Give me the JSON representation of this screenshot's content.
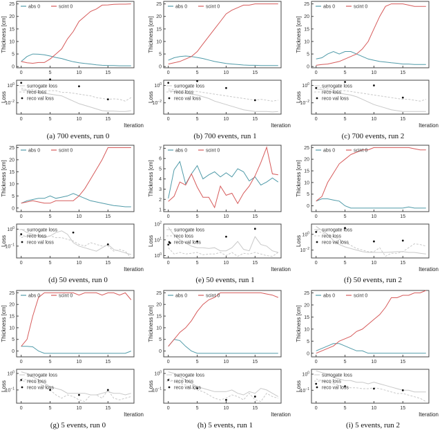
{
  "labels": {
    "thickness_axis": "Thickness [cm]",
    "loss_axis": "Loss",
    "iteration_axis": "Iteration",
    "abs": "abs 0",
    "scint": "scint 0",
    "surrogate": "surrogate loss",
    "reco": "reco loss",
    "reco_val": "reco val loss"
  },
  "colors": {
    "abs": "#4f9aa8",
    "scint": "#d65a5a",
    "surrogate": "#c8c8c8",
    "reco": "#c8c8c8",
    "val": "#111111"
  },
  "chart_data": [
    {
      "type": "line",
      "caption": "(a) 700 events, run 0",
      "x_ticks": [
        0,
        5,
        10,
        15
      ],
      "ylim": [
        -0.5,
        26
      ],
      "y_ticks": [
        0,
        5,
        10,
        15,
        20,
        25
      ],
      "abs": [
        2,
        4,
        5,
        4.9,
        4.7,
        4.2,
        3.6,
        3.2,
        2.5,
        1.9,
        1.5,
        1.2,
        1,
        0.7,
        0.5,
        0.4,
        0.4,
        0.3,
        0.3,
        0.3
      ],
      "scint": [
        2,
        1.5,
        1.3,
        1.6,
        1.6,
        3,
        5,
        7,
        11,
        14,
        18,
        20,
        22,
        23,
        24.5,
        24.6,
        24.8,
        24.9,
        24.9,
        25
      ],
      "loss_ylim_log10": [
        -3.3,
        0.6
      ],
      "loss_ticks_log10": [
        0,
        -2
      ],
      "surrogate_log10": [
        -0.5,
        -0.6,
        -0.7,
        -0.8,
        -0.9,
        -1,
        -1.1,
        -1.2,
        -1.5,
        -1.8,
        -2.1,
        -2.3,
        -2.5,
        -2.7,
        -2.9,
        -2.95,
        -2.95,
        -3,
        -3,
        -2.9
      ],
      "reco_log10": [
        -0.3,
        -0.5,
        -0.5,
        -0.6,
        -0.6,
        -0.6,
        -0.6,
        -0.8,
        -0.8,
        -0.9,
        -1,
        -1.1,
        -1.2,
        -1.4,
        -1.5,
        -1.6,
        -1.55,
        -1.6,
        -1.8,
        -1.4
      ],
      "val_log10": [
        [
          0,
          0.3
        ],
        [
          5,
          0.7
        ],
        [
          10,
          -0.1
        ],
        [
          15,
          -1.6
        ]
      ]
    },
    {
      "type": "line",
      "caption": "(b) 700 events, run 1",
      "x_ticks": [
        0,
        5,
        10,
        15
      ],
      "ylim": [
        -0.5,
        26
      ],
      "y_ticks": [
        0,
        5,
        10,
        15,
        20,
        25
      ],
      "abs": [
        2.5,
        3.5,
        4,
        4.2,
        4,
        3.6,
        3.2,
        2.6,
        2,
        1.6,
        1.2,
        1,
        0.8,
        0.6,
        0.5,
        0.5,
        0.4,
        0.4,
        0.4,
        0.4
      ],
      "scint": [
        1,
        1.5,
        2,
        3,
        4,
        6,
        9,
        12,
        15,
        18,
        21,
        22.5,
        23.5,
        24.5,
        24.5,
        25,
        25,
        25,
        25,
        25
      ],
      "loss_ylim_log10": [
        -3.3,
        0.6
      ],
      "loss_ticks_log10": [
        0,
        -2
      ],
      "surrogate_log10": [
        -0.6,
        -0.7,
        -0.8,
        -0.9,
        -1,
        -1.1,
        -1.3,
        -1.5,
        -1.8,
        -2,
        -2.2,
        -2.4,
        -2.6,
        -2.8,
        -2.9,
        -3,
        -3,
        -3,
        -3.05,
        -3
      ],
      "reco_log10": [
        -0.4,
        -0.5,
        -0.6,
        -0.6,
        -0.7,
        -0.7,
        -0.8,
        -0.9,
        -1,
        -1.1,
        -1.2,
        -1.3,
        -1.4,
        -1.5,
        -1.6,
        -1.7,
        -1.6,
        -1.7,
        -1.8,
        -1.7
      ],
      "val_log10": [
        [
          0,
          0.3
        ],
        [
          5,
          0.5
        ],
        [
          10,
          -0.3
        ],
        [
          15,
          -1.7
        ]
      ]
    },
    {
      "type": "line",
      "caption": "(c) 700 events, run 2",
      "x_ticks": [
        0,
        5,
        10,
        15
      ],
      "ylim": [
        -0.5,
        26
      ],
      "y_ticks": [
        0,
        5,
        10,
        15,
        20,
        25
      ],
      "abs": [
        3,
        3.5,
        5,
        6,
        5,
        6,
        6,
        5,
        4,
        3,
        2.5,
        2,
        1.8,
        1.5,
        1.3,
        1,
        1,
        0.8,
        0.8,
        0.8
      ],
      "scint": [
        0.5,
        0.8,
        1,
        1.5,
        2,
        3,
        4,
        5,
        7,
        10,
        15,
        20,
        24,
        25,
        25,
        25,
        24.5,
        24,
        24,
        24
      ],
      "loss_ylim_log10": [
        -3.3,
        0.6
      ],
      "loss_ticks_log10": [
        0,
        -2
      ],
      "surrogate_log10": [
        -0.4,
        -0.5,
        -0.6,
        -0.8,
        -0.9,
        -1,
        -1.1,
        -1.3,
        -1.6,
        -1.9,
        -2.2,
        -2.4,
        -2.6,
        -2.8,
        -2.9,
        -3,
        -3,
        -3,
        -3,
        -3
      ],
      "reco_log10": [
        -0.2,
        -0.3,
        -0.4,
        -0.5,
        -0.6,
        -0.6,
        -0.7,
        -0.8,
        -0.9,
        -1,
        -1.1,
        -1.2,
        -1.3,
        -1.4,
        -1.5,
        -1.6,
        -1.6,
        -1.7,
        -1.8,
        -1.6
      ],
      "val_log10": [
        [
          0,
          -0.3
        ],
        [
          5,
          0.4
        ],
        [
          10,
          0
        ],
        [
          15,
          -1.4
        ]
      ]
    },
    {
      "type": "line",
      "caption": "(d) 50 events, run 0",
      "x_ticks": [
        0,
        5,
        10,
        15
      ],
      "ylim": [
        -1.5,
        26
      ],
      "y_ticks": [
        0,
        5,
        10,
        15,
        20,
        25
      ],
      "abs": [
        2,
        3,
        3.5,
        4,
        4,
        5,
        4,
        4.5,
        5,
        6,
        5,
        4,
        3,
        2.5,
        2,
        1.5,
        1,
        0.8,
        0.5,
        0.5
      ],
      "scint": [
        2,
        2.5,
        3,
        2.5,
        2,
        2,
        3,
        3,
        3,
        3,
        5,
        8,
        12,
        16,
        20,
        25,
        25,
        25,
        25,
        25
      ],
      "loss_ylim_log10": [
        -1.7,
        0.3
      ],
      "loss_ticks_log10": [
        0,
        -1
      ],
      "surrogate_log10": [
        0,
        -0.2,
        -0.3,
        -0.4,
        -0.5,
        -0.4,
        -0.2,
        -0.1,
        -0.3,
        -0.8,
        -1,
        -1.1,
        -1.2,
        -1.3,
        -1.1,
        -0.9,
        -1.2,
        -1.3,
        -1.4,
        -1.5
      ],
      "reco_log10": [
        -0.5,
        -0.4,
        -0.4,
        -0.35,
        -0.4,
        -0.4,
        -0.5,
        -0.5,
        -0.6,
        -0.7,
        -0.9,
        -1,
        -0.8,
        -0.9,
        -1,
        -1,
        -1.3,
        -1.2,
        -1.3,
        -1.7
      ],
      "val_log10": [
        [
          0,
          -0.3
        ],
        [
          9,
          -0.2
        ],
        [
          15,
          -0.9
        ]
      ]
    },
    {
      "type": "line",
      "caption": "(e) 50 events, run 1",
      "x_ticks": [
        0,
        5,
        10,
        15
      ],
      "ylim": [
        0.8,
        7.3
      ],
      "y_ticks": [
        1,
        2,
        3,
        4,
        5,
        6,
        7
      ],
      "abs": [
        2.1,
        4.9,
        5.7,
        3.5,
        4.5,
        5.3,
        4,
        4.4,
        4.7,
        4.2,
        4.6,
        4.2,
        5,
        4.7,
        3.8,
        4.2,
        3.4,
        3.7,
        4.1,
        3.7
      ],
      "scint": [
        1.8,
        2.3,
        3.7,
        3.4,
        4.5,
        3.2,
        2.2,
        2.2,
        1.2,
        3.3,
        2.4,
        2.6,
        1.6,
        2.6,
        3.3,
        4.3,
        5.6,
        7.1,
        4.5,
        4.4
      ],
      "loss_ylim_log10": [
        -0.15,
        2
      ],
      "loss_ticks_log10": [
        2,
        1,
        0
      ],
      "surrogate_log10": [
        1.8,
        1.3,
        1,
        0.8,
        0.6,
        0.5,
        0.5,
        0.45,
        0.5,
        0.3,
        0.3,
        0.5,
        0.9,
        0.4,
        0.3,
        1.2,
        0.7,
        0.6,
        0.3,
        0.2
      ],
      "reco_log10": [
        0.5,
        0.1,
        0.2,
        0.1,
        0.15,
        0.2,
        0.05,
        0.1,
        0.1,
        0.2,
        0,
        0.2,
        -0.05,
        0.15,
        0.1,
        0.2,
        0.1,
        0,
        -0.05,
        0.2
      ],
      "val_log10": [
        [
          0,
          0.7
        ],
        [
          0.3,
          0.8
        ],
        [
          5,
          0.9
        ],
        [
          10,
          1.2
        ],
        [
          15,
          1.7
        ]
      ]
    },
    {
      "type": "line",
      "caption": "(f) 50 events, run 2",
      "x_ticks": [
        0,
        5,
        10,
        15
      ],
      "ylim": [
        -2.5,
        26
      ],
      "y_ticks": [
        0,
        5,
        10,
        15,
        20,
        25
      ],
      "abs": [
        2,
        3,
        3,
        2.5,
        2,
        0,
        -1,
        -1,
        -1,
        -1,
        -1,
        -1,
        -1,
        -1,
        -1,
        -1,
        -0.5,
        -1,
        -1,
        -1
      ],
      "scint": [
        2,
        4,
        10,
        14,
        18,
        20,
        22,
        23,
        24,
        24,
        25,
        25,
        25,
        25,
        25,
        25,
        25,
        24.5,
        24,
        24
      ],
      "loss_ylim_log10": [
        -3,
        1.3
      ],
      "loss_ticks_log10": [
        0,
        -2
      ],
      "surrogate_log10": [
        1,
        0.5,
        0,
        -0.8,
        -1.3,
        -1.6,
        -1.8,
        -2,
        -2.2,
        -2.3,
        -2.3,
        -2.3,
        -2.3,
        -2.25,
        -2.2,
        -2.2,
        -2.3,
        -2.3,
        -2.4,
        -2.5
      ],
      "reco_log10": [
        0.5,
        0.2,
        0,
        -0.3,
        -0.6,
        -1,
        -1.4,
        -1.8,
        -2,
        -2.2,
        -2.2,
        -1.7,
        -2.8,
        -2.4,
        -2.4,
        -2.2,
        -1.7,
        -1.2,
        -1.3,
        -1.5
      ],
      "val_log10": [
        [
          0,
          0.3
        ],
        [
          5,
          0.8
        ],
        [
          10,
          -0.9
        ],
        [
          15,
          -0.8
        ]
      ]
    },
    {
      "type": "line",
      "caption": "(g) 5 events, run 0",
      "x_ticks": [
        0,
        5,
        10,
        15
      ],
      "ylim": [
        -2.5,
        26
      ],
      "y_ticks": [
        0,
        5,
        10,
        15,
        20,
        25
      ],
      "abs": [
        2,
        2,
        1.8,
        0,
        -1,
        -1,
        -1,
        -1,
        -1,
        -1,
        -1,
        -1,
        -1,
        -1,
        -1,
        -1,
        -1,
        -1,
        -1,
        0
      ],
      "scint": [
        2,
        5,
        15,
        23,
        25,
        25,
        25,
        25,
        25,
        25,
        24,
        25,
        25,
        25,
        24,
        25,
        25,
        24,
        25,
        22
      ],
      "loss_ylim_log10": [
        -1.8,
        0.25
      ],
      "loss_ticks_log10": [
        0,
        -1
      ],
      "surrogate_log10": [
        0.1,
        0,
        -0.2,
        -0.4,
        -0.6,
        -0.8,
        -0.9,
        -1,
        -1.2,
        -1.2,
        -1.2,
        -1.2,
        -1.3,
        -1.3,
        -1.2,
        -1.1,
        -1.2,
        -1.2,
        -1.3,
        -1.2
      ],
      "reco_log10": [
        -0.3,
        -0.4,
        -0.5,
        -0.6,
        -0.8,
        -1,
        -1.3,
        -1.5,
        -1.3,
        -1.4,
        -1.6,
        -1.7,
        -1.3,
        -1.3,
        -1.5,
        -1,
        -1.5,
        -1.6,
        -1.5,
        -1.4
      ],
      "val_log10": [
        [
          0,
          -0.4
        ],
        [
          5,
          -1
        ],
        [
          10,
          -1.3
        ],
        [
          15,
          -1
        ]
      ]
    },
    {
      "type": "line",
      "caption": "(h) 5 events, run 1",
      "x_ticks": [
        0,
        5,
        10,
        15
      ],
      "ylim": [
        -2.5,
        26
      ],
      "y_ticks": [
        0,
        5,
        10,
        15,
        20,
        25
      ],
      "abs": [
        2,
        5,
        4.5,
        2,
        0,
        -1,
        -1,
        -1,
        -1,
        -1,
        -1,
        -1,
        -1,
        -1,
        -1,
        -1,
        -1,
        -1,
        -1,
        -1
      ],
      "scint": [
        2,
        5,
        8,
        10,
        13,
        17,
        20,
        22,
        23,
        25,
        25,
        25,
        25,
        25,
        25,
        25,
        25,
        24.5,
        24,
        23
      ],
      "loss_ylim_log10": [
        -1.8,
        0.25
      ],
      "loss_ticks_log10": [
        0,
        -1
      ],
      "surrogate_log10": [
        0.1,
        0,
        -0.2,
        -0.4,
        -0.6,
        -0.8,
        -0.9,
        -1,
        -1.1,
        -1.1,
        -1.1,
        -1,
        -1.2,
        -1.3,
        -1.1,
        -1.2,
        -0.9,
        -1,
        -1.2,
        -1.4
      ],
      "reco_log10": [
        -0.3,
        -0.5,
        -0.6,
        -0.7,
        -0.9,
        -1,
        -1.1,
        -1.3,
        -1.5,
        -1.6,
        -1.5,
        -1.3,
        -1.4,
        -1.6,
        -1.2,
        -1.6,
        -1.7,
        -1.2,
        -1.4,
        -1.5
      ],
      "val_log10": [
        [
          0,
          -0.4
        ],
        [
          5,
          -0.9
        ],
        [
          10,
          -1.6
        ],
        [
          15,
          -1.4
        ]
      ]
    },
    {
      "type": "line",
      "caption": "(i) 5 events, run 2",
      "x_ticks": [
        0,
        5,
        10,
        15
      ],
      "ylim": [
        -1.5,
        26
      ],
      "y_ticks": [
        0,
        5,
        10,
        15,
        20,
        25
      ],
      "abs": [
        1,
        2,
        3,
        4,
        4,
        3,
        2,
        1,
        1,
        0,
        0,
        0,
        0,
        0,
        0,
        0,
        0,
        0,
        0,
        0
      ],
      "scint": [
        0,
        1,
        2,
        3,
        5,
        6,
        7,
        9,
        10,
        12,
        14,
        16,
        19,
        23,
        23,
        24,
        24,
        25,
        25,
        26
      ],
      "loss_ylim_log10": [
        -1.8,
        0.3
      ],
      "loss_ticks_log10": [
        0,
        -1
      ],
      "surrogate_log10": [
        0.2,
        0.1,
        0,
        -0.2,
        -0.3,
        -0.4,
        -0.4,
        -0.5,
        -0.5,
        -0.6,
        -0.5,
        -0.6,
        -0.7,
        -0.8,
        -0.9,
        -1,
        -1,
        -1.1,
        -1.1,
        -1.1
      ],
      "reco_log10": [
        -0.3,
        -0.4,
        -0.5,
        -0.6,
        -0.7,
        -0.8,
        -0.85,
        -0.85,
        -0.9,
        -0.9,
        -0.85,
        -0.9,
        -1,
        -1.1,
        -1.2,
        -1.2,
        -1.3,
        -1.4,
        -1.5,
        -1.7
      ],
      "val_log10": [
        [
          0,
          -0.6
        ],
        [
          5,
          -0.75
        ],
        [
          10,
          -0.9
        ],
        [
          15,
          -1
        ]
      ]
    }
  ]
}
